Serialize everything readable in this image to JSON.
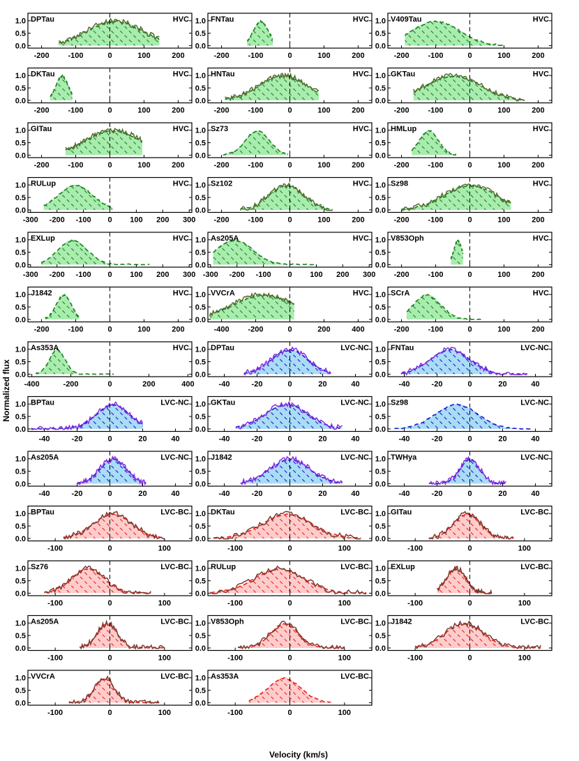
{
  "figure": {
    "xlabel": "Velocity (km/s)",
    "ylabel": "Normalized flux"
  },
  "colors": {
    "HVC": {
      "fill": "#a8ecae",
      "hatch": "#1e7d22",
      "line": "#556b2f",
      "dash": "#1e7d22"
    },
    "LVC-NC": {
      "fill": "#a9dcf5",
      "hatch": "#1a1acc",
      "line": "#8a2be2",
      "dash": "#1a1acc"
    },
    "LVC-BC": {
      "fill": "#ffcccc",
      "hatch": "#e8201a",
      "line": "#7a3a30",
      "dash": "#e8201a"
    }
  },
  "chart_data": [
    {
      "type": "line",
      "name": "DPTau",
      "component": "HVC",
      "xlim": [
        -240,
        240
      ],
      "xticks": [
        -200,
        -100,
        0,
        100,
        200
      ],
      "yticks": [
        0.0,
        0.5,
        1.0
      ],
      "ylim": [
        -0.1,
        1.3
      ],
      "center": 15,
      "width": 80,
      "rng": [
        -150,
        145
      ],
      "solid": true
    },
    {
      "type": "line",
      "name": "FNTau",
      "component": "HVC",
      "xlim": [
        -240,
        240
      ],
      "xticks": [
        -200,
        -100,
        0,
        100,
        200
      ],
      "yticks": [
        0.0,
        0.5,
        1.0
      ],
      "ylim": [
        -0.1,
        1.3
      ],
      "center": -85,
      "width": 22,
      "rng": [
        -125,
        -50
      ],
      "solid": false
    },
    {
      "type": "line",
      "name": "V409Tau",
      "component": "HVC",
      "xlim": [
        -240,
        240
      ],
      "xticks": [
        -200,
        -100,
        0,
        100,
        200
      ],
      "yticks": [
        0.0,
        0.5,
        1.0
      ],
      "ylim": [
        -0.1,
        1.3
      ],
      "center": -100,
      "width": 70,
      "rng": [
        -190,
        100
      ],
      "solid": false
    },
    {
      "type": "line",
      "name": "DKTau",
      "component": "HVC",
      "xlim": [
        -240,
        240
      ],
      "xticks": [
        -200,
        -100,
        0,
        100,
        200
      ],
      "yticks": [
        0.0,
        0.5,
        1.0
      ],
      "ylim": [
        -0.1,
        1.3
      ],
      "center": -140,
      "width": 18,
      "rng": [
        -175,
        -110
      ],
      "solid": false
    },
    {
      "type": "line",
      "name": "HNTau",
      "component": "HVC",
      "xlim": [
        -240,
        240
      ],
      "xticks": [
        -200,
        -100,
        0,
        100,
        200
      ],
      "yticks": [
        0.0,
        0.5,
        1.0
      ],
      "ylim": [
        -0.1,
        1.3
      ],
      "center": -20,
      "width": 70,
      "rng": [
        -190,
        85
      ],
      "solid": true
    },
    {
      "type": "line",
      "name": "GKTau",
      "component": "HVC",
      "xlim": [
        -240,
        240
      ],
      "xticks": [
        -200,
        -100,
        0,
        100,
        200
      ],
      "yticks": [
        0.0,
        0.5,
        1.0
      ],
      "ylim": [
        -0.1,
        1.3
      ],
      "center": -50,
      "width": 80,
      "rng": [
        -165,
        160
      ],
      "solid": true
    },
    {
      "type": "line",
      "name": "GITau",
      "component": "HVC",
      "xlim": [
        -240,
        240
      ],
      "xticks": [
        -200,
        -100,
        0,
        100,
        200
      ],
      "yticks": [
        0.0,
        0.5,
        1.0
      ],
      "ylim": [
        -0.1,
        1.3
      ],
      "center": 10,
      "width": 80,
      "rng": [
        -130,
        95
      ],
      "solid": true
    },
    {
      "type": "line",
      "name": "Sz73",
      "component": "HVC",
      "xlim": [
        -240,
        240
      ],
      "xticks": [
        -200,
        -100,
        0,
        100,
        200
      ],
      "yticks": [
        0.0,
        0.5,
        1.0
      ],
      "ylim": [
        -0.1,
        1.3
      ],
      "center": -95,
      "width": 35,
      "rng": [
        -195,
        -5
      ],
      "solid": false
    },
    {
      "type": "line",
      "name": "HMLup",
      "component": "HVC",
      "xlim": [
        -240,
        240
      ],
      "xticks": [
        -200,
        -100,
        0,
        100,
        200
      ],
      "yticks": [
        0.0,
        0.5,
        1.0
      ],
      "ylim": [
        -0.1,
        1.3
      ],
      "center": -120,
      "width": 28,
      "rng": [
        -170,
        -40
      ],
      "solid": false
    },
    {
      "type": "line",
      "name": "RULup",
      "component": "HVC",
      "xlim": [
        -310,
        310
      ],
      "xticks": [
        -300,
        -200,
        -100,
        0,
        100,
        200,
        300
      ],
      "yticks": [
        0.0,
        0.5,
        1.0
      ],
      "ylim": [
        -0.1,
        1.3
      ],
      "center": -130,
      "width": 65,
      "rng": [
        -250,
        10
      ],
      "solid": false
    },
    {
      "type": "line",
      "name": "Sz102",
      "component": "HVC",
      "xlim": [
        -240,
        240
      ],
      "xticks": [
        -200,
        -100,
        0,
        100,
        200
      ],
      "yticks": [
        0.0,
        0.5,
        1.0
      ],
      "ylim": [
        -0.1,
        1.3
      ],
      "center": -10,
      "width": 50,
      "rng": [
        -145,
        125
      ],
      "solid": true
    },
    {
      "type": "line",
      "name": "Sz98",
      "component": "HVC",
      "xlim": [
        -240,
        240
      ],
      "xticks": [
        -200,
        -100,
        0,
        100,
        200
      ],
      "yticks": [
        0.0,
        0.5,
        1.0
      ],
      "ylim": [
        -0.1,
        1.3
      ],
      "center": 0,
      "width": 75,
      "rng": [
        -200,
        120
      ],
      "solid": true
    },
    {
      "type": "line",
      "name": "EXLup",
      "component": "HVC",
      "xlim": [
        -310,
        310
      ],
      "xticks": [
        -300,
        -200,
        -100,
        0,
        100,
        200,
        300
      ],
      "yticks": [
        0.0,
        0.5,
        1.0
      ],
      "ylim": [
        -0.1,
        1.3
      ],
      "center": -140,
      "width": 55,
      "rng": [
        -260,
        150
      ],
      "solid": false
    },
    {
      "type": "line",
      "name": "As205A",
      "component": "HVC",
      "xlim": [
        -310,
        310
      ],
      "xticks": [
        -300,
        -200,
        -100,
        0,
        100,
        200,
        300
      ],
      "yticks": [
        0.0,
        0.5,
        1.0
      ],
      "ylim": [
        -0.1,
        1.3
      ],
      "center": -210,
      "width": 70,
      "rng": [
        -290,
        100
      ],
      "solid": false
    },
    {
      "type": "line",
      "name": "V853Oph",
      "component": "HVC",
      "xlim": [
        -240,
        240
      ],
      "xticks": [
        -200,
        -100,
        0,
        100,
        200
      ],
      "yticks": [
        0.0,
        0.5,
        1.0
      ],
      "ylim": [
        -0.1,
        1.3
      ],
      "center": -35,
      "width": 12,
      "rng": [
        -55,
        -20
      ],
      "solid": false
    },
    {
      "type": "line",
      "name": "J1842",
      "component": "HVC",
      "xlim": [
        -240,
        240
      ],
      "xticks": [
        -200,
        -100,
        0,
        100,
        200
      ],
      "yticks": [
        0.0,
        0.5,
        1.0
      ],
      "ylim": [
        -0.1,
        1.3
      ],
      "center": -135,
      "width": 22,
      "rng": [
        -190,
        -90
      ],
      "solid": false
    },
    {
      "type": "line",
      "name": "VVCrA",
      "component": "HVC",
      "xlim": [
        -480,
        480
      ],
      "xticks": [
        -400,
        -200,
        0,
        200,
        400
      ],
      "yticks": [
        0.0,
        0.5,
        1.0
      ],
      "ylim": [
        -0.1,
        1.3
      ],
      "center": -150,
      "width": 180,
      "rng": [
        -470,
        25
      ],
      "solid": true
    },
    {
      "type": "line",
      "name": "SCrA",
      "component": "HVC",
      "xlim": [
        -240,
        240
      ],
      "xticks": [
        -200,
        -100,
        0,
        100,
        200
      ],
      "yticks": [
        0.0,
        0.5,
        1.0
      ],
      "ylim": [
        -0.1,
        1.3
      ],
      "center": -125,
      "width": 40,
      "rng": [
        -185,
        40
      ],
      "solid": false
    },
    {
      "type": "line",
      "name": "As353A",
      "component": "HVC",
      "xlim": [
        -420,
        420
      ],
      "xticks": [
        -400,
        -200,
        0,
        200,
        400
      ],
      "yticks": [
        0.0,
        0.5,
        1.0
      ],
      "ylim": [
        -0.1,
        1.3
      ],
      "center": -270,
      "width": 40,
      "rng": [
        -380,
        20
      ],
      "solid": false
    },
    {
      "type": "line",
      "name": "DPTau",
      "component": "LVC-NC",
      "xlim": [
        -50,
        50
      ],
      "xticks": [
        -40,
        -20,
        0,
        20,
        40
      ],
      "yticks": [
        0.0,
        0.5,
        1.0
      ],
      "ylim": [
        -0.1,
        1.3
      ],
      "center": 0,
      "width": 11,
      "rng": [
        -28,
        25
      ],
      "solid": true
    },
    {
      "type": "line",
      "name": "FNTau",
      "component": "LVC-NC",
      "xlim": [
        -50,
        50
      ],
      "xticks": [
        -40,
        -20,
        0,
        20,
        40
      ],
      "yticks": [
        0.0,
        0.5,
        1.0
      ],
      "ylim": [
        -0.1,
        1.3
      ],
      "center": -12,
      "width": 12,
      "rng": [
        -42,
        35
      ],
      "solid": true
    },
    {
      "type": "line",
      "name": "BPTau",
      "component": "LVC-NC",
      "xlim": [
        -50,
        50
      ],
      "xticks": [
        -40,
        -20,
        0,
        20,
        40
      ],
      "yticks": [
        0.0,
        0.5,
        1.0
      ],
      "ylim": [
        -0.1,
        1.3
      ],
      "center": 2,
      "width": 10,
      "rng": [
        -48,
        20
      ],
      "solid": true
    },
    {
      "type": "line",
      "name": "GKTau",
      "component": "LVC-NC",
      "xlim": [
        -50,
        50
      ],
      "xticks": [
        -40,
        -20,
        0,
        20,
        40
      ],
      "yticks": [
        0.0,
        0.5,
        1.0
      ],
      "ylim": [
        -0.1,
        1.3
      ],
      "center": -2,
      "width": 13,
      "rng": [
        -33,
        32
      ],
      "solid": true
    },
    {
      "type": "line",
      "name": "Sz98",
      "component": "LVC-NC",
      "xlim": [
        -50,
        50
      ],
      "xticks": [
        -40,
        -20,
        0,
        20,
        40
      ],
      "yticks": [
        0.0,
        0.5,
        1.0
      ],
      "ylim": [
        -0.1,
        1.3
      ],
      "center": -8,
      "width": 13,
      "rng": [
        -46,
        38
      ],
      "solid": false
    },
    {
      "type": "line",
      "name": "As205A",
      "component": "LVC-NC",
      "xlim": [
        -50,
        50
      ],
      "xticks": [
        -40,
        -20,
        0,
        20,
        40
      ],
      "yticks": [
        0.0,
        0.5,
        1.0
      ],
      "ylim": [
        -0.1,
        1.3
      ],
      "center": 2,
      "width": 8,
      "rng": [
        -20,
        22
      ],
      "solid": true
    },
    {
      "type": "line",
      "name": "J1842",
      "component": "LVC-NC",
      "xlim": [
        -50,
        50
      ],
      "xticks": [
        -40,
        -20,
        0,
        20,
        40
      ],
      "yticks": [
        0.0,
        0.5,
        1.0
      ],
      "ylim": [
        -0.1,
        1.3
      ],
      "center": 0,
      "width": 12,
      "rng": [
        -30,
        32
      ],
      "solid": true
    },
    {
      "type": "line",
      "name": "TWHya",
      "component": "LVC-NC",
      "xlim": [
        -50,
        50
      ],
      "xticks": [
        -40,
        -20,
        0,
        20,
        40
      ],
      "yticks": [
        0.0,
        0.5,
        1.0
      ],
      "ylim": [
        -0.1,
        1.3
      ],
      "center": 0,
      "width": 6,
      "rng": [
        -25,
        22
      ],
      "solid": true
    },
    {
      "type": "line",
      "name": "BPTau",
      "component": "LVC-BC",
      "xlim": [
        -150,
        150
      ],
      "xticks": [
        -100,
        0,
        100
      ],
      "yticks": [
        0.0,
        0.5,
        1.0
      ],
      "ylim": [
        -0.1,
        1.3
      ],
      "center": 5,
      "width": 35,
      "rng": [
        -85,
        100
      ],
      "solid": true
    },
    {
      "type": "line",
      "name": "DKTau",
      "component": "LVC-BC",
      "xlim": [
        -150,
        150
      ],
      "xticks": [
        -100,
        0,
        100
      ],
      "yticks": [
        0.0,
        0.5,
        1.0
      ],
      "ylim": [
        -0.1,
        1.3
      ],
      "center": -5,
      "width": 45,
      "rng": [
        -140,
        130
      ],
      "solid": true
    },
    {
      "type": "line",
      "name": "GITau",
      "component": "LVC-BC",
      "xlim": [
        -150,
        150
      ],
      "xticks": [
        -100,
        0,
        100
      ],
      "yticks": [
        0.0,
        0.5,
        1.0
      ],
      "ylim": [
        -0.1,
        1.3
      ],
      "center": -5,
      "width": 25,
      "rng": [
        -75,
        80
      ],
      "solid": true
    },
    {
      "type": "line",
      "name": "Sz76",
      "component": "LVC-BC",
      "xlim": [
        -150,
        150
      ],
      "xticks": [
        -100,
        0,
        100
      ],
      "yticks": [
        0.0,
        0.5,
        1.0
      ],
      "ylim": [
        -0.1,
        1.3
      ],
      "center": -40,
      "width": 30,
      "rng": [
        -120,
        75
      ],
      "solid": true
    },
    {
      "type": "line",
      "name": "RULup",
      "component": "LVC-BC",
      "xlim": [
        -150,
        150
      ],
      "xticks": [
        -100,
        0,
        100
      ],
      "yticks": [
        0.0,
        0.5,
        1.0
      ],
      "ylim": [
        -0.1,
        1.3
      ],
      "center": -20,
      "width": 45,
      "rng": [
        -145,
        140
      ],
      "solid": true
    },
    {
      "type": "line",
      "name": "EXLup",
      "component": "LVC-BC",
      "xlim": [
        -150,
        150
      ],
      "xticks": [
        -100,
        0,
        100
      ],
      "yticks": [
        0.0,
        0.5,
        1.0
      ],
      "ylim": [
        -0.1,
        1.3
      ],
      "center": -25,
      "width": 18,
      "rng": [
        -60,
        40
      ],
      "solid": true
    },
    {
      "type": "line",
      "name": "As205A",
      "component": "LVC-BC",
      "xlim": [
        -150,
        150
      ],
      "xticks": [
        -100,
        0,
        100
      ],
      "yticks": [
        0.0,
        0.5,
        1.0
      ],
      "ylim": [
        -0.1,
        1.3
      ],
      "center": -5,
      "width": 18,
      "rng": [
        -55,
        100
      ],
      "solid": true
    },
    {
      "type": "line",
      "name": "V853Oph",
      "component": "LVC-BC",
      "xlim": [
        -150,
        150
      ],
      "xticks": [
        -100,
        0,
        100
      ],
      "yticks": [
        0.0,
        0.5,
        1.0
      ],
      "ylim": [
        -0.1,
        1.3
      ],
      "center": -10,
      "width": 25,
      "rng": [
        -95,
        100
      ],
      "solid": true
    },
    {
      "type": "line",
      "name": "J1842",
      "component": "LVC-BC",
      "xlim": [
        -150,
        150
      ],
      "xticks": [
        -100,
        0,
        100
      ],
      "yticks": [
        0.0,
        0.5,
        1.0
      ],
      "ylim": [
        -0.1,
        1.3
      ],
      "center": -10,
      "width": 35,
      "rng": [
        -100,
        130
      ],
      "solid": true
    },
    {
      "type": "line",
      "name": "VVCrA",
      "component": "LVC-BC",
      "xlim": [
        -150,
        150
      ],
      "xticks": [
        -100,
        0,
        100
      ],
      "yticks": [
        0.0,
        0.5,
        1.0
      ],
      "ylim": [
        -0.1,
        1.3
      ],
      "center": -10,
      "width": 18,
      "rng": [
        -75,
        90
      ],
      "solid": true
    },
    {
      "type": "line",
      "name": "As353A",
      "component": "LVC-BC",
      "xlim": [
        -150,
        150
      ],
      "xticks": [
        -100,
        0,
        100
      ],
      "yticks": [
        0.0,
        0.5,
        1.0
      ],
      "ylim": [
        -0.1,
        1.3
      ],
      "center": -10,
      "width": 30,
      "rng": [
        -75,
        75
      ],
      "solid": false
    }
  ]
}
